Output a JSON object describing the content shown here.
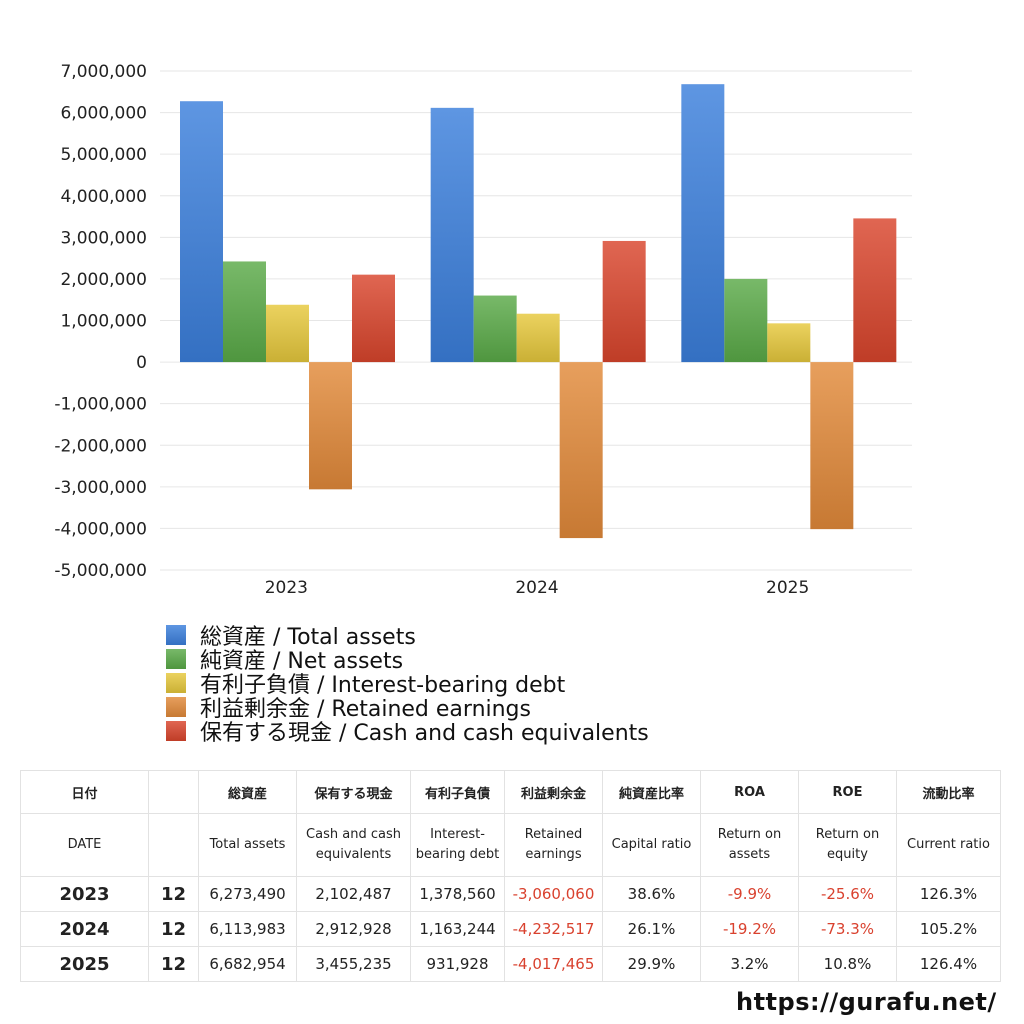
{
  "chart_data": {
    "type": "bar",
    "categories": [
      "2023",
      "2024",
      "2025"
    ],
    "series": [
      {
        "name": "総資産 / Total assets",
        "values": [
          6273490,
          6113983,
          6682954
        ],
        "color": "#3b7fdc"
      },
      {
        "name": "純資産 / Net assets",
        "values": [
          2420000,
          1600000,
          2000000
        ],
        "color": "#5aaa48"
      },
      {
        "name": "有利子負債 / Interest-bearing debt",
        "values": [
          1378560,
          1163244,
          931928
        ],
        "color": "#e6c83c"
      },
      {
        "name": "利益剰余金 / Retained earnings",
        "values": [
          -3060060,
          -4232517,
          -4017465
        ],
        "color": "#e28a3a"
      },
      {
        "name": "保有する現金 /  Cash and cash equivalents",
        "values": [
          2102487,
          2912928,
          3455235
        ],
        "color": "#d9452c"
      }
    ],
    "ylim": [
      -5000000,
      7000000
    ],
    "yticks": [
      "7,000,000",
      "6,000,000",
      "5,000,000",
      "4,000,000",
      "3,000,000",
      "2,000,000",
      "1,000,000",
      "0",
      "-1,000,000",
      "-2,000,000",
      "-3,000,000",
      "-4,000,000",
      "-5,000,000"
    ],
    "grid": true,
    "legend_position": "bottom",
    "title": "",
    "xlabel": "",
    "ylabel": ""
  },
  "table": {
    "header_ja": [
      "日付",
      "",
      "総資産",
      "保有する現金",
      "有利子負債",
      "利益剰余金",
      "純資産比率",
      "ROA",
      "ROE",
      "流動比率"
    ],
    "header_en": [
      "DATE",
      "",
      "Total assets",
      "Cash and cash equivalents",
      "Interest-bearing debt",
      "Retained earnings",
      "Capital ratio",
      "Return on assets",
      "Return on equity",
      "Current ratio"
    ],
    "rows": [
      [
        "2023",
        "12",
        "6,273,490",
        "2,102,487",
        "1,378,560",
        "-3,060,060",
        "38.6%",
        "-9.9%",
        "-25.6%",
        "126.3%"
      ],
      [
        "2024",
        "12",
        "6,113,983",
        "2,912,928",
        "1,163,244",
        "-4,232,517",
        "26.1%",
        "-19.2%",
        "-73.3%",
        "105.2%"
      ],
      [
        "2025",
        "12",
        "6,682,954",
        "3,455,235",
        "931,928",
        "-4,017,465",
        "29.9%",
        "3.2%",
        "10.8%",
        "126.4%"
      ]
    ]
  },
  "footer": {
    "url": "https://gurafu.net/"
  }
}
